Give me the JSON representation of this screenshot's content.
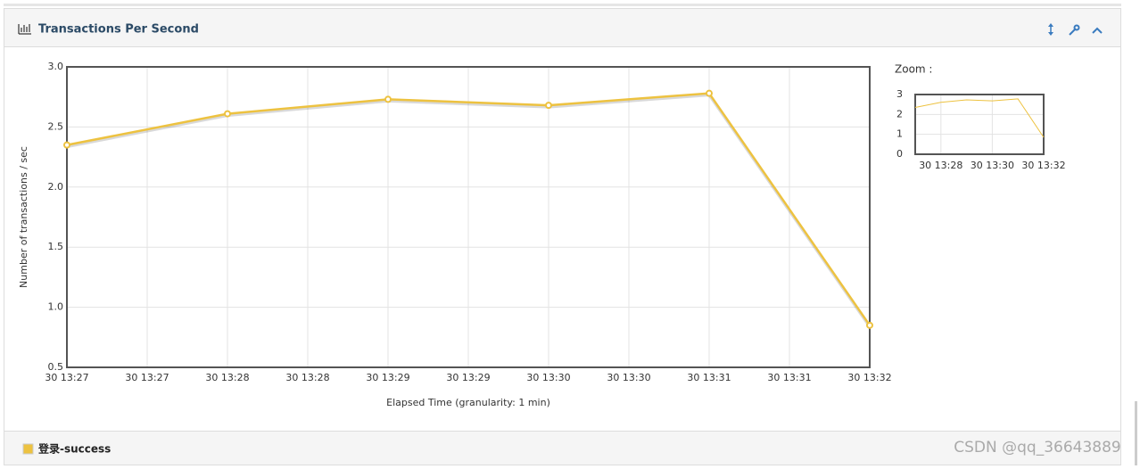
{
  "panel": {
    "title": "Transactions Per Second"
  },
  "chart_data": [
    {
      "type": "line",
      "y_label": "Number of transactions / sec",
      "x_label": "Elapsed Time (granularity: 1 min)",
      "xticks": [
        "30 13:27",
        "30 13:27",
        "30 13:28",
        "30 13:28",
        "30 13:29",
        "30 13:29",
        "30 13:30",
        "30 13:30",
        "30 13:31",
        "30 13:31",
        "30 13:32"
      ],
      "ylim": [
        0.5,
        3.0
      ],
      "yticks": [
        0.5,
        {
          "value": 1.0,
          "label": "1.0"
        },
        1.5,
        {
          "value": 2.0,
          "label": "2.0"
        },
        2.5,
        {
          "value": 3.0,
          "label": "3.0"
        }
      ],
      "grid": true,
      "series": [
        {
          "name": "登录-success",
          "color": "#edc240",
          "values": [
            2.35,
            2.61,
            2.73,
            2.68,
            2.78,
            0.85
          ]
        }
      ]
    },
    {
      "type": "line",
      "title": "Zoom :",
      "ylim": [
        0,
        3
      ],
      "yticks": [
        0,
        1,
        2,
        3
      ],
      "xticks": [
        "30 13:28",
        "30 13:30",
        "30 13:32"
      ],
      "grid": true
    }
  ],
  "watermark": "CSDN @qq_36643889"
}
